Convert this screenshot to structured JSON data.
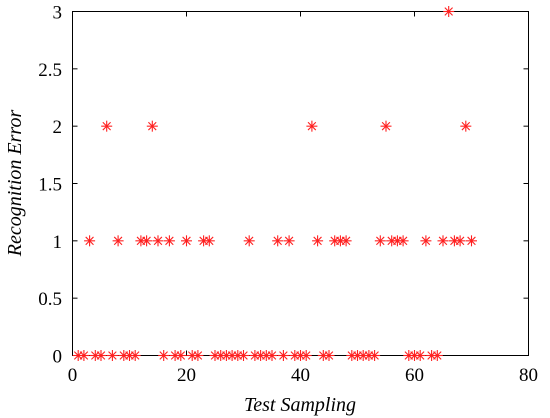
{
  "chart_data": {
    "type": "scatter",
    "title": "",
    "xlabel": "Test Sampling",
    "ylabel": "Recognition Error",
    "xlim": [
      0,
      80
    ],
    "ylim": [
      0,
      3
    ],
    "xticks": [
      0,
      20,
      40,
      60,
      80
    ],
    "yticks": [
      0,
      0.5,
      1,
      1.5,
      2,
      2.5,
      3
    ],
    "xtick_labels": [
      "0",
      "20",
      "40",
      "60",
      "80"
    ],
    "ytick_labels": [
      "0",
      "0.5",
      "1",
      "1.5",
      "2",
      "2.5",
      "3"
    ],
    "grid": false,
    "marker": "asterisk",
    "color": "#ff2020",
    "series": [
      {
        "x": [
          1,
          2,
          3,
          4,
          5,
          6,
          7,
          8,
          9,
          10,
          11,
          12,
          13,
          14,
          15,
          16,
          17,
          18,
          19,
          20,
          21,
          22,
          23,
          24,
          25,
          26,
          27,
          28,
          29,
          30,
          31,
          32,
          33,
          34,
          35,
          36,
          37,
          38,
          39,
          40,
          41,
          42,
          43,
          44,
          45,
          46,
          47,
          48,
          49,
          50,
          51,
          52,
          53,
          54,
          55,
          56,
          57,
          58,
          59,
          60,
          61,
          62,
          63,
          64,
          65,
          66,
          67,
          68,
          69,
          70
        ],
        "y": [
          0,
          0,
          1,
          0,
          0,
          2,
          0,
          1,
          0,
          0,
          0,
          1,
          1,
          2,
          1,
          0,
          1,
          0,
          0,
          1,
          0,
          0,
          1,
          1,
          0,
          0,
          0,
          0,
          0,
          0,
          1,
          0,
          0,
          0,
          0,
          1,
          0,
          1,
          0,
          0,
          0,
          2,
          1,
          0,
          0,
          1,
          1,
          1,
          0,
          0,
          0,
          0,
          0,
          1,
          2,
          1,
          1,
          1,
          0,
          0,
          0,
          1,
          0,
          0,
          1,
          3,
          1,
          1,
          2,
          1
        ]
      }
    ]
  }
}
